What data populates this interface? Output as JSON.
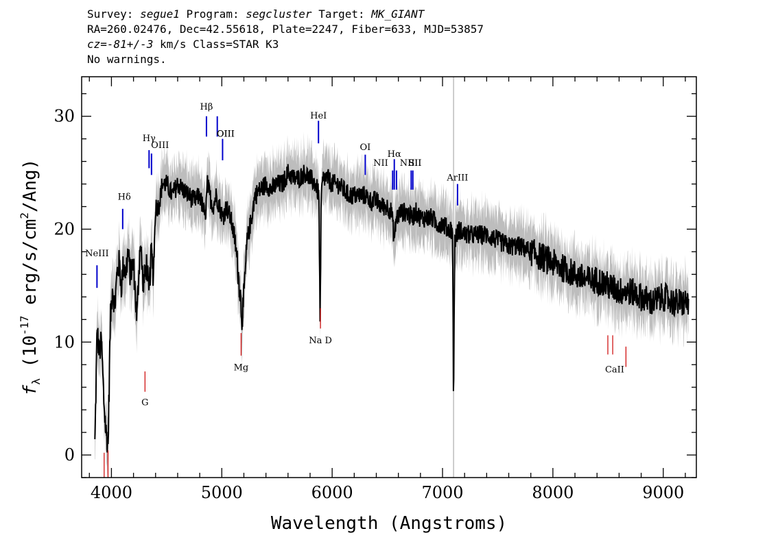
{
  "header": {
    "survey_label": "Survey:",
    "survey": "segue1",
    "program_label": "Program:",
    "program": "segcluster",
    "target_label": "Target:",
    "target": "MK_GIANT",
    "line2": "RA=260.02476, Dec=42.55618, Plate=2247, Fiber=633, MJD=53857",
    "cz_label": "cz=",
    "cz_value": "-81+/-3",
    "cz_unit": " km/s Class=STAR K3",
    "warnings": "No warnings."
  },
  "chart_data": {
    "type": "line",
    "xlabel": "Wavelength (Angstroms)",
    "ylabel_main": "f",
    "ylabel_sub": "λ",
    "ylabel_rest": " (10",
    "ylabel_exp": "-17",
    "ylabel_tail": " erg/s/cm",
    "ylabel_exp2": "2",
    "ylabel_end": "/Ang)",
    "xlim": [
      3730,
      9300
    ],
    "ylim": [
      -2,
      33.5
    ],
    "xticks": [
      4000,
      5000,
      6000,
      7000,
      8000,
      9000
    ],
    "yticks": [
      0,
      10,
      20,
      30
    ],
    "vertical_marker_x": 7100,
    "series": [
      {
        "role": "flux",
        "color": "#000000",
        "x": [
          3850,
          3870,
          3890,
          3910,
          3930,
          3950,
          3970,
          3990,
          4010,
          4030,
          4050,
          4070,
          4090,
          4110,
          4130,
          4150,
          4170,
          4200,
          4230,
          4260,
          4290,
          4320,
          4340,
          4360,
          4380,
          4400,
          4430,
          4460,
          4500,
          4550,
          4600,
          4650,
          4700,
          4750,
          4800,
          4850,
          4870,
          4890,
          4920,
          4950,
          4980,
          5010,
          5040,
          5080,
          5120,
          5150,
          5170,
          5183,
          5200,
          5230,
          5270,
          5300,
          5350,
          5400,
          5450,
          5500,
          5550,
          5600,
          5650,
          5700,
          5750,
          5800,
          5850,
          5880,
          5890,
          5895,
          5900,
          5920,
          5960,
          6000,
          6050,
          6100,
          6150,
          6200,
          6250,
          6300,
          6350,
          6400,
          6450,
          6500,
          6540,
          6563,
          6580,
          6620,
          6680,
          6720,
          6760,
          6800,
          6850,
          6900,
          6950,
          7000,
          7050,
          7090,
          7100,
          7110,
          7150,
          7200,
          7300,
          7400,
          7500,
          7600,
          7700,
          7800,
          7900,
          8000,
          8100,
          8200,
          8300,
          8400,
          8500,
          8600,
          8700,
          8800,
          8900,
          9000,
          9100,
          9200,
          9230
        ],
        "y": [
          1,
          11,
          9,
          10,
          5,
          2,
          1,
          12,
          15,
          13,
          16,
          17,
          15,
          17,
          16,
          18,
          16,
          17,
          12,
          19,
          15,
          17,
          14,
          18,
          16,
          22,
          22,
          24,
          24,
          23,
          24,
          23.5,
          23,
          22.5,
          23,
          21,
          24,
          23,
          22,
          23,
          22,
          21,
          22,
          21,
          19,
          16,
          14,
          12,
          14,
          19,
          21,
          23,
          23.5,
          24,
          23.5,
          24,
          24,
          25,
          24.5,
          24.5,
          25,
          24.5,
          24,
          23,
          12,
          14,
          23,
          24.5,
          24.5,
          24,
          24,
          23.5,
          23,
          23,
          23,
          23,
          22.5,
          22.5,
          22,
          22,
          21.5,
          19,
          21,
          21.5,
          21.5,
          21,
          21.5,
          21,
          21,
          21,
          20.5,
          20.5,
          20,
          20,
          4.5,
          19,
          20,
          19.5,
          19.5,
          19.5,
          19,
          18.5,
          18.5,
          18,
          17.5,
          17,
          16.5,
          16,
          15.5,
          15.5,
          15,
          14.5,
          14.5,
          14,
          13.5,
          14,
          13.5,
          13.5,
          13.5
        ]
      }
    ],
    "emission_lines": [
      {
        "label": "NeIII",
        "x": 3869,
        "y0": 14.8,
        "y1": 16.8,
        "lx": 3869,
        "ly": 17.6
      },
      {
        "label": "Hδ",
        "x": 4102,
        "y0": 20.0,
        "y1": 21.8,
        "lx": 4117,
        "ly": 22.6
      },
      {
        "label": "Hγ",
        "x": 4341,
        "y0": 25.4,
        "y1": 27.0,
        "lx": 4341,
        "ly": 27.8
      },
      {
        "label": "OIII",
        "x": 4363,
        "y0": 24.8,
        "y1": 26.7,
        "lx": 4440,
        "ly": 27.2
      },
      {
        "label": "Hβ",
        "x": 4861,
        "y0": 28.2,
        "y1": 30.0,
        "lx": 4861,
        "ly": 30.6
      },
      {
        "label": "OIII",
        "x": 4959,
        "y0": 28.2,
        "y1": 30.0,
        "lx": 5035,
        "ly": 28.2
      },
      {
        "label": "OIII",
        "x": 5007,
        "y0": 26.1,
        "y1": 28.0,
        "lx": 5035,
        "ly": 28.2
      },
      {
        "label": "HeI",
        "x": 5876,
        "y0": 27.6,
        "y1": 29.6,
        "lx": 5876,
        "ly": 29.8
      },
      {
        "label": "OI",
        "x": 6300,
        "y0": 24.8,
        "y1": 26.6,
        "lx": 6300,
        "ly": 27.0
      },
      {
        "label": "NII",
        "x": 6548,
        "y0": 23.5,
        "y1": 25.2,
        "lx": 6440,
        "ly": 25.6
      },
      {
        "label": "Hα",
        "x": 6563,
        "y0": 23.5,
        "y1": 26.2,
        "lx": 6563,
        "ly": 26.4
      },
      {
        "label": "NII",
        "x": 6583,
        "y0": 23.5,
        "y1": 25.2,
        "lx": 6680,
        "ly": 25.6
      },
      {
        "label": "SII",
        "x": 6716,
        "y0": 23.5,
        "y1": 25.2,
        "lx": 6750,
        "ly": 25.6
      },
      {
        "label": "SII",
        "x": 6731,
        "y0": 23.5,
        "y1": 25.2,
        "lx": 6750,
        "ly": 25.6
      },
      {
        "label": "ArIII",
        "x": 7136,
        "y0": 22.1,
        "y1": 24.0,
        "lx": 7136,
        "ly": 24.3
      }
    ],
    "absorption_lines": [
      {
        "label": "",
        "x": 3934,
        "y0": -2.0,
        "y1": 0.2,
        "lx": 0,
        "ly": 0
      },
      {
        "label": "",
        "x": 3969,
        "y0": -2.0,
        "y1": 0.4,
        "lx": 0,
        "ly": 0
      },
      {
        "label": "G",
        "x": 4304,
        "y0": 5.6,
        "y1": 7.4,
        "lx": 4304,
        "ly": 4.4
      },
      {
        "label": "Mg",
        "x": 5175,
        "y0": 8.8,
        "y1": 10.8,
        "lx": 5175,
        "ly": 7.5
      },
      {
        "label": "Na D",
        "x": 5894,
        "y0": 11.2,
        "y1": 13.0,
        "lx": 5894,
        "ly": 9.9
      },
      {
        "label": "CaII",
        "x": 8498,
        "y0": 8.9,
        "y1": 10.6,
        "lx": 8560,
        "ly": 7.3
      },
      {
        "label": "",
        "x": 8542,
        "y0": 8.9,
        "y1": 10.6,
        "lx": 0,
        "ly": 0
      },
      {
        "label": "",
        "x": 8662,
        "y0": 7.8,
        "y1": 9.6,
        "lx": 0,
        "ly": 0
      }
    ],
    "colors": {
      "flux": "#000000",
      "error": "#bdbdbd",
      "emission": "#0000cc",
      "absorption": "#cc0000",
      "marker": "#bdbdbd"
    }
  }
}
